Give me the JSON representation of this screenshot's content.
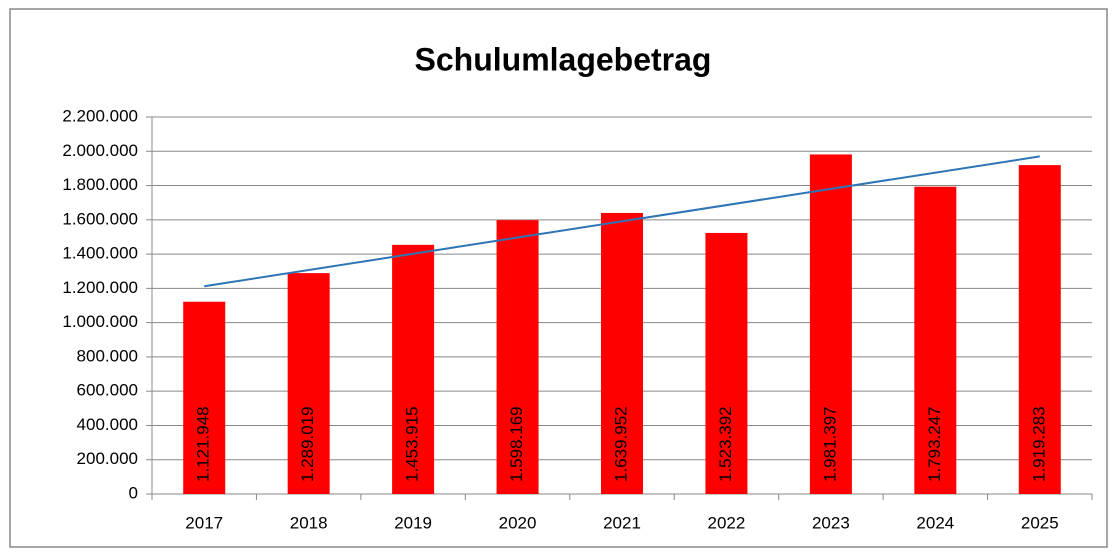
{
  "chart_data": {
    "type": "bar",
    "title": "Schulumlagebetrag",
    "categories": [
      "2017",
      "2018",
      "2019",
      "2020",
      "2021",
      "2022",
      "2023",
      "2024",
      "2025"
    ],
    "values": [
      1121948,
      1289019,
      1453915,
      1598169,
      1639952,
      1523392,
      1981397,
      1793247,
      1919283
    ],
    "value_labels": [
      "1.121.948",
      "1.289.019",
      "1.453.915",
      "1.598.169",
      "1.639.952",
      "1.523.392",
      "1.981.397",
      "1.793.247",
      "1.919.283"
    ],
    "color": "#ff0000",
    "trendline": {
      "type": "linear",
      "color": "#2e75b6"
    },
    "ylim": [
      0,
      2200000
    ],
    "yticks": [
      0,
      {
        "value": 200000,
        "label": "200.000"
      },
      {
        "value": 400000,
        "label": "400.000"
      },
      {
        "value": 600000,
        "label": "600.000"
      },
      {
        "value": 800000,
        "label": "800.000"
      },
      {
        "value": 1000000,
        "label": "1.000.000"
      },
      {
        "value": 1200000,
        "label": "1.200.000"
      },
      {
        "value": 1400000,
        "label": "1.400.000"
      },
      {
        "value": 1600000,
        "label": "1.600.000"
      },
      {
        "value": 1800000,
        "label": "1.800.000"
      },
      {
        "value": 2000000,
        "label": "2.000.000"
      },
      {
        "value": 2200000,
        "label": "2.200.000"
      }
    ],
    "grid": true
  }
}
